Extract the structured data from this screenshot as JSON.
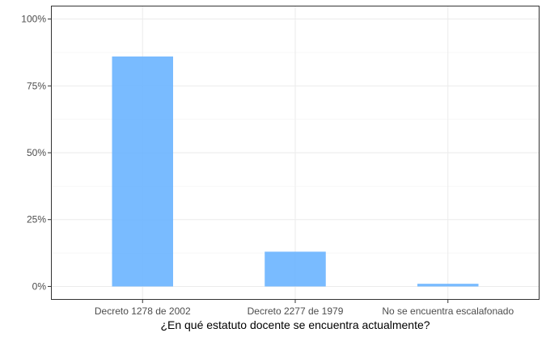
{
  "chart_data": {
    "type": "bar",
    "title": "",
    "xlabel": "¿En qué estatuto docente se encuentra actualmente?",
    "ylabel": "",
    "categories": [
      "Decreto 1278 de 2002",
      "Decreto 2277 de 1979",
      "No se encuentra escalafonado"
    ],
    "values": [
      0.86,
      0.13,
      0.01
    ],
    "ylim": [
      0,
      1
    ],
    "yticks": [
      0,
      0.25,
      0.5,
      0.75,
      1
    ],
    "ytick_labels": [
      "0%",
      "25%",
      "50%",
      "75%",
      "100%"
    ],
    "grid": true,
    "legend": "none",
    "bar_color": "#66B2FF"
  }
}
